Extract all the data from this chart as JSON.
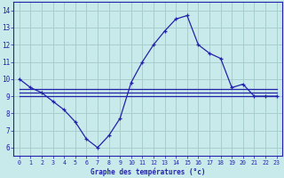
{
  "x": [
    0,
    1,
    2,
    3,
    4,
    5,
    6,
    7,
    8,
    9,
    10,
    11,
    12,
    13,
    14,
    15,
    16,
    17,
    18,
    19,
    20,
    21,
    22,
    23
  ],
  "temp_main": [
    10.0,
    9.5,
    9.2,
    8.7,
    8.2,
    7.5,
    6.5,
    6.0,
    6.7,
    7.7,
    9.8,
    11.0,
    12.0,
    12.8,
    13.5,
    13.7,
    12.0,
    11.5,
    11.2,
    9.5,
    9.7,
    9.0,
    9.0,
    9.0
  ],
  "temp_line1": [
    9.2,
    9.2,
    9.2,
    9.2,
    9.2,
    9.2,
    9.2,
    9.2,
    9.2,
    9.2,
    9.2,
    9.2,
    9.2,
    9.2,
    9.2,
    9.2,
    9.2,
    9.2,
    9.2,
    9.2,
    9.2,
    9.2,
    9.2,
    9.2
  ],
  "temp_line2": [
    9.4,
    9.4,
    9.4,
    9.4,
    9.4,
    9.4,
    9.4,
    9.4,
    9.4,
    9.4,
    9.4,
    9.4,
    9.4,
    9.4,
    9.4,
    9.4,
    9.4,
    9.4,
    9.4,
    9.4,
    9.4,
    9.4,
    9.4,
    9.4
  ],
  "temp_line3": [
    9.0,
    9.0,
    9.0,
    9.0,
    9.0,
    9.0,
    9.0,
    9.0,
    9.0,
    9.0,
    9.0,
    9.0,
    9.0,
    9.0,
    9.0,
    9.0,
    9.0,
    9.0,
    9.0,
    9.0,
    9.0,
    9.0,
    9.0,
    9.0
  ],
  "bg_color": "#c8eaea",
  "grid_color": "#a8cece",
  "line_color": "#2222aa",
  "xlabel": "Graphe des températures (°c)",
  "ylim": [
    5.5,
    14.5
  ],
  "xlim": [
    -0.5,
    23.5
  ],
  "yticks": [
    6,
    7,
    8,
    9,
    10,
    11,
    12,
    13,
    14
  ],
  "xticks": [
    0,
    1,
    2,
    3,
    4,
    5,
    6,
    7,
    8,
    9,
    10,
    11,
    12,
    13,
    14,
    15,
    16,
    17,
    18,
    19,
    20,
    21,
    22,
    23
  ]
}
